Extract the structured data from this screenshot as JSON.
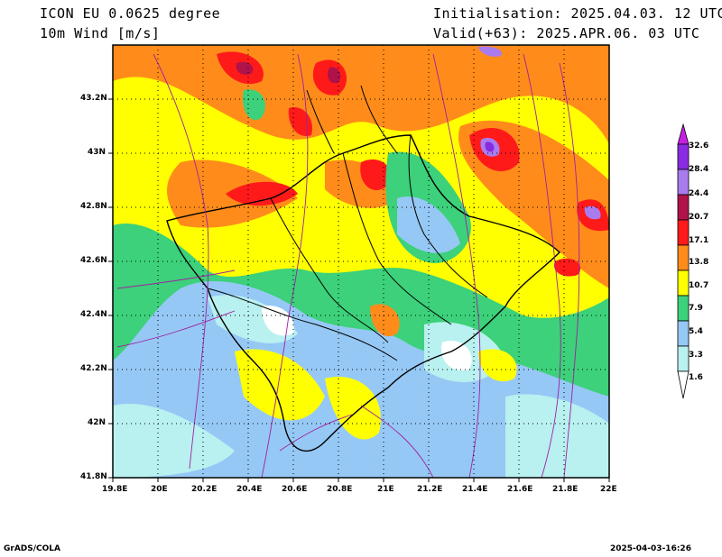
{
  "header": {
    "model": "ICON EU 0.0625 degree",
    "variable": "10m Wind [m/s]",
    "init": "Initialisation: 2025.04.03. 12 UTC",
    "valid": "Valid(+63): 2025.APR.06. 03 UTC"
  },
  "axes": {
    "lat_labels": [
      "43.2N",
      "43N",
      "42.8N",
      "42.6N",
      "42.4N",
      "42.2N",
      "42N",
      "41.8N"
    ],
    "lon_labels": [
      "19.8E",
      "20E",
      "20.2E",
      "20.4E",
      "20.6E",
      "20.8E",
      "21E",
      "21.2E",
      "21.4E",
      "21.6E",
      "21.8E",
      "22E"
    ]
  },
  "colorbar": {
    "labels": [
      "32.6",
      "28.4",
      "24.4",
      "20.7",
      "17.1",
      "13.8",
      "10.7",
      "7.9",
      "5.4",
      "3.3",
      "1.6"
    ],
    "colors": [
      "#c71fe3",
      "#8a2be2",
      "#a97bef",
      "#b0124a",
      "#ff1a1a",
      "#ff8c1a",
      "#ffff00",
      "#3cd17a",
      "#96c8f5",
      "#b9f0f0",
      "#ffffff"
    ]
  },
  "footer": {
    "left": "GrADS/COLA",
    "right": "2025-04-03-16:26"
  }
}
